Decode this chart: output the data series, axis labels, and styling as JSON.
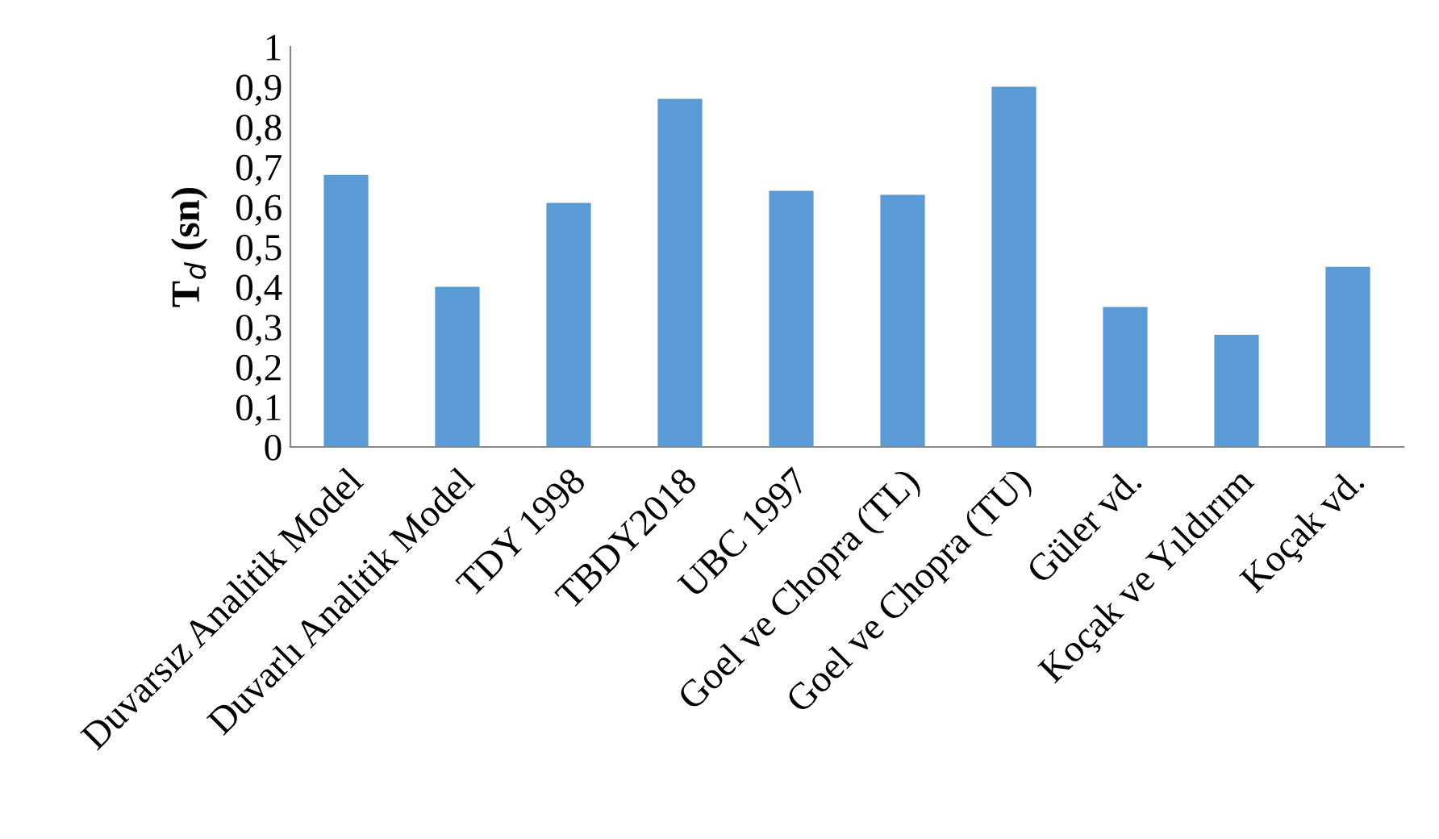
{
  "chart_data": {
    "type": "bar",
    "ylabel": "T$_{d}$ (sn)",
    "categories": [
      "Duvarsız Analitik Model",
      "Duvarlı Analitik Model",
      "TDY 1998",
      "TBDY2018",
      "UBC 1997",
      "Goel ve Chopra (TL)",
      "Goel ve Chopra (TU)",
      "Güler vd.",
      "Koçak ve Yıldırım",
      "Koçak vd."
    ],
    "values": [
      0.68,
      0.4,
      0.61,
      0.87,
      0.64,
      0.63,
      0.9,
      0.35,
      0.28,
      0.45
    ],
    "color": "#5b9bd5",
    "ylim": [
      0,
      1
    ],
    "yticks": [
      0,
      {
        "value": 0.1,
        "label": "0,1"
      },
      {
        "value": 0.2,
        "label": "0,2"
      },
      {
        "value": 0.3,
        "label": "0,3"
      },
      {
        "value": 0.4,
        "label": "0,4"
      },
      {
        "value": 0.5,
        "label": "0,5"
      },
      {
        "value": 0.6,
        "label": "0,6"
      },
      {
        "value": 0.7,
        "label": "0,7"
      },
      {
        "value": 0.8,
        "label": "0,8"
      },
      {
        "value": 0.9,
        "label": "0,9"
      },
      1
    ],
    "grid": false,
    "legend": false
  }
}
